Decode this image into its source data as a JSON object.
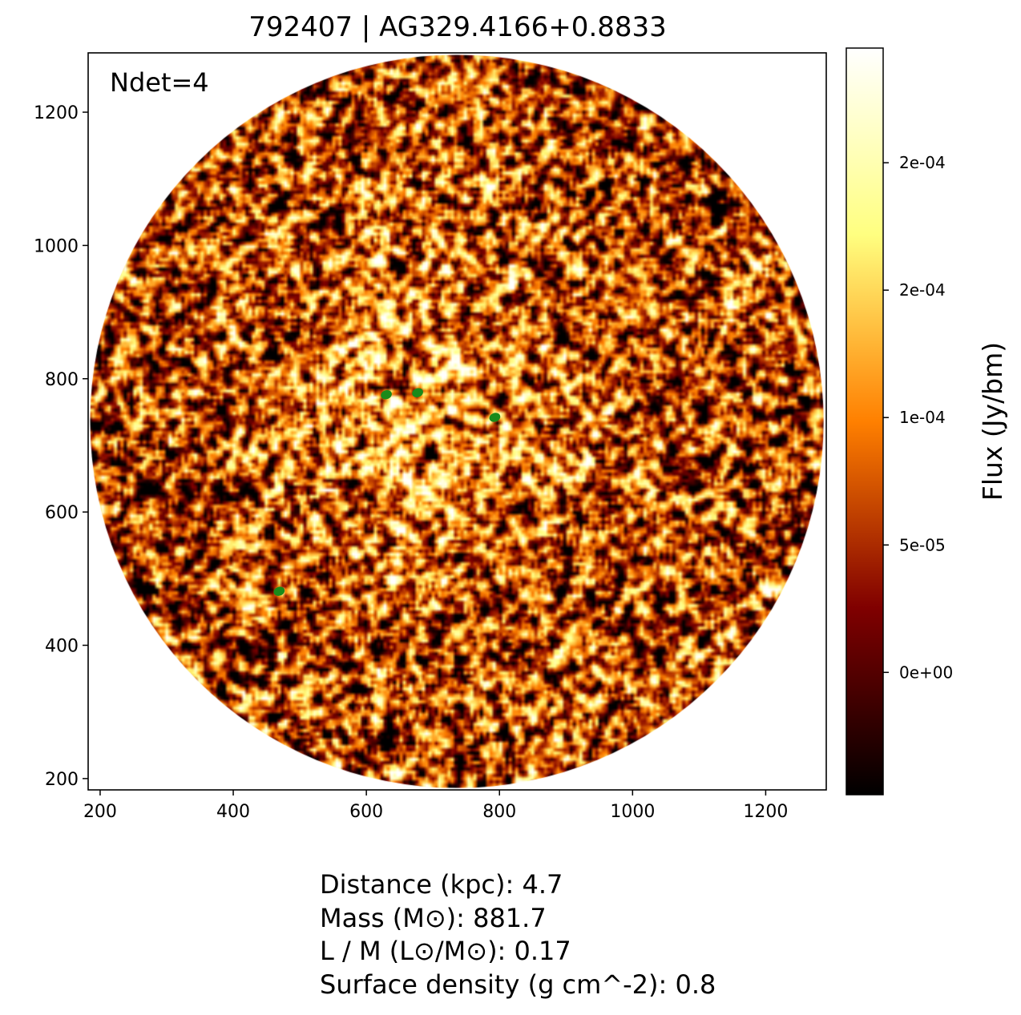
{
  "title": "792407 | AG329.4166+0.8833",
  "annotation": "Ndet=4",
  "chart_data": {
    "type": "heatmap",
    "title": "792407 | AG329.4166+0.8833",
    "xlim": [
      182,
      1291
    ],
    "ylim": [
      183,
      1289
    ],
    "xticks": [
      200,
      400,
      600,
      800,
      1000,
      1200
    ],
    "yticks": [
      200,
      400,
      600,
      800,
      1000,
      1200
    ],
    "xlabel": "",
    "ylabel": "",
    "grid": false,
    "colormap": "afmhot",
    "image_footprint": {
      "shape": "circle",
      "center": [
        736,
        736
      ],
      "radius": 551
    },
    "bright_region_center": [
      660,
      760
    ],
    "detections": {
      "color": "#1a8a1a",
      "points": [
        {
          "x": 630,
          "y": 776
        },
        {
          "x": 677,
          "y": 779
        },
        {
          "x": 793,
          "y": 742
        },
        {
          "x": 469,
          "y": 481
        }
      ]
    },
    "colorbar": {
      "label": "Flux (Jy/bm)",
      "range": [
        -4.8e-05,
        0.000245
      ],
      "ticks": [
        0,
        5e-05,
        0.0001,
        0.00015,
        0.0002
      ],
      "tick_labels": [
        "0e+00",
        "5e-05",
        "1e-04",
        "2e-04",
        "2e-04"
      ]
    }
  },
  "info": [
    "Distance (kpc): 4.7",
    "Mass (M⊙): 881.7",
    "L / M (L⊙/M⊙): 0.17",
    "Surface density (g cm^-2): 0.8"
  ]
}
